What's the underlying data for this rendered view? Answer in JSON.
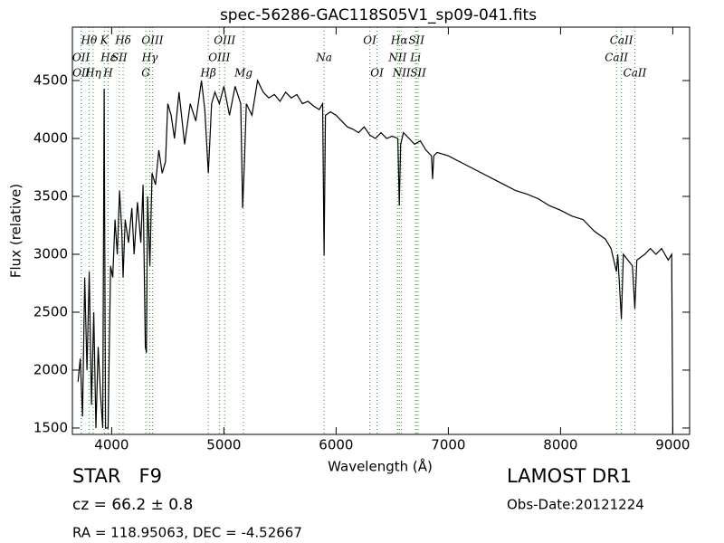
{
  "chart_data": {
    "type": "line",
    "title": "spec-56286-GAC118S05V1_sp09-041.fits",
    "x_label": "Wavelength (Å)",
    "y_label": "Flux (relative)",
    "xlim": [
      3650,
      9150
    ],
    "ylim": [
      1445,
      4961
    ],
    "xticks": [
      4000,
      5000,
      6000,
      7000,
      8000,
      9000
    ],
    "yticks": [
      1500,
      2000,
      2500,
      3000,
      3500,
      4000,
      4500
    ],
    "line_color": "#2ca02c",
    "lines": [
      {
        "label": "Hθ",
        "x": 3798
      },
      {
        "label": "K",
        "x": 3934
      },
      {
        "label": "Hδ",
        "x": 4102
      },
      {
        "label": "OIII",
        "x": 4363
      },
      {
        "label": "OIII",
        "x": 5007
      },
      {
        "label": "OI",
        "x": 6300
      },
      {
        "label": "Hα",
        "x": 6563
      },
      {
        "label": "SII",
        "x": 6716
      },
      {
        "label": "CaII",
        "x": 8542
      },
      {
        "label": "OII",
        "x": 3727
      },
      {
        "label": "Hε",
        "x": 3970
      },
      {
        "label": "SII",
        "x": 4068
      },
      {
        "label": "Hγ",
        "x": 4340
      },
      {
        "label": "OIII",
        "x": 4959
      },
      {
        "label": "NII",
        "x": 6548
      },
      {
        "label": "Li",
        "x": 6708
      },
      {
        "label": "CaII",
        "x": 8498
      },
      {
        "label": "OII",
        "x": 3729
      },
      {
        "label": "Hη",
        "x": 3835
      },
      {
        "label": "H",
        "x": 3968
      },
      {
        "label": "G",
        "x": 4304
      },
      {
        "label": "Hβ",
        "x": 4861
      },
      {
        "label": "Mg",
        "x": 5175
      },
      {
        "label": "Na",
        "x": 5893
      },
      {
        "label": "OI",
        "x": 6364
      },
      {
        "label": "NII",
        "x": 6583
      },
      {
        "label": "SII",
        "x": 6731
      },
      {
        "label": "CaII",
        "x": 8662
      }
    ],
    "series": [
      {
        "color": "#000000",
        "x": [
          3700,
          3720,
          3740,
          3760,
          3780,
          3800,
          3820,
          3840,
          3860,
          3880,
          3900,
          3920,
          3933,
          3945,
          3968,
          3990,
          4010,
          4030,
          4050,
          4070,
          4090,
          4102,
          4120,
          4150,
          4180,
          4200,
          4230,
          4260,
          4280,
          4300,
          4310,
          4320,
          4340,
          4360,
          4390,
          4420,
          4450,
          4480,
          4500,
          4530,
          4560,
          4600,
          4650,
          4700,
          4750,
          4800,
          4830,
          4861,
          4890,
          4920,
          4960,
          5000,
          5050,
          5100,
          5150,
          5167,
          5183,
          5200,
          5250,
          5300,
          5350,
          5400,
          5450,
          5500,
          5550,
          5600,
          5650,
          5700,
          5750,
          5800,
          5850,
          5880,
          5893,
          5905,
          5950,
          6000,
          6050,
          6100,
          6150,
          6200,
          6250,
          6300,
          6350,
          6400,
          6450,
          6500,
          6550,
          6563,
          6575,
          6600,
          6650,
          6700,
          6750,
          6800,
          6850,
          6860,
          6870,
          6900,
          7000,
          7100,
          7200,
          7300,
          7400,
          7500,
          7600,
          7700,
          7800,
          7900,
          8000,
          8100,
          8200,
          8300,
          8400,
          8450,
          8498,
          8510,
          8542,
          8560,
          8600,
          8640,
          8662,
          8680,
          8750,
          8800,
          8850,
          8900,
          8960,
          8990,
          9000
        ],
        "values": [
          1900,
          2100,
          1600,
          2800,
          2000,
          2850,
          1700,
          2500,
          1500,
          2200,
          1800,
          1500,
          4430,
          1500,
          1500,
          2900,
          2800,
          3300,
          3000,
          3550,
          3200,
          2800,
          3300,
          3100,
          3400,
          3000,
          3450,
          3100,
          3600,
          2200,
          2150,
          3500,
          2900,
          3700,
          3600,
          3900,
          3700,
          3800,
          4300,
          4200,
          4000,
          4400,
          3950,
          4300,
          4150,
          4500,
          4250,
          3700,
          4300,
          4400,
          4300,
          4450,
          4200,
          4450,
          4300,
          3400,
          3800,
          4300,
          4200,
          4500,
          4400,
          4350,
          4380,
          4320,
          4400,
          4350,
          4380,
          4300,
          4320,
          4280,
          4250,
          4300,
          2990,
          4200,
          4230,
          4200,
          4150,
          4100,
          4080,
          4050,
          4100,
          4030,
          4000,
          4050,
          4000,
          4020,
          4000,
          3420,
          3950,
          4050,
          4000,
          3950,
          3980,
          3900,
          3850,
          3650,
          3850,
          3880,
          3850,
          3800,
          3750,
          3700,
          3650,
          3600,
          3550,
          3520,
          3480,
          3420,
          3380,
          3330,
          3300,
          3200,
          3130,
          3050,
          2850,
          3000,
          2440,
          3000,
          2950,
          2900,
          2530,
          2950,
          3000,
          3050,
          3000,
          3050,
          2950,
          3000,
          1450
        ]
      }
    ],
    "annotations": {
      "object_class": "STAR   F9",
      "cz": "cz = 66.2 ± 0.8",
      "coordinates": "RA = 118.95063, DEC = -4.52667",
      "survey": "LAMOST DR1",
      "obs_date": "Obs-Date:20121224"
    }
  }
}
